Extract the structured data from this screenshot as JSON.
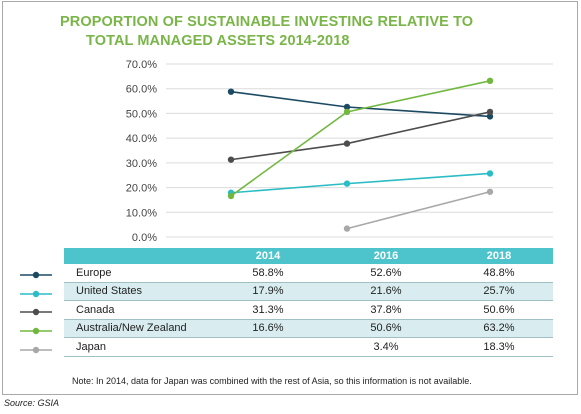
{
  "chart_data": {
    "type": "line",
    "title_line1": "PROPORTION OF SUSTAINABLE INVESTING RELATIVE TO",
    "title_line2": "TOTAL MANAGED ASSETS 2014-2018",
    "categories": [
      "2014",
      "2016",
      "2018"
    ],
    "ylim": [
      0,
      70
    ],
    "yticks": [
      "0.0%",
      "10.0%",
      "20.0%",
      "30.0%",
      "40.0%",
      "50.0%",
      "60.0%",
      "70.0%"
    ],
    "grid": true,
    "series": [
      {
        "name": "Europe",
        "color": "#1c4a63",
        "values": [
          58.8,
          52.6,
          48.8
        ],
        "labels": [
          "58.8%",
          "52.6%",
          "48.8%"
        ]
      },
      {
        "name": "United States",
        "color": "#2bbcc5",
        "values": [
          17.9,
          21.6,
          25.7
        ],
        "labels": [
          "17.9%",
          "21.6%",
          "25.7%"
        ]
      },
      {
        "name": "Canada",
        "color": "#4d4d4d",
        "values": [
          31.3,
          37.8,
          50.6
        ],
        "labels": [
          "31.3%",
          "37.8%",
          "50.6%"
        ]
      },
      {
        "name": "Australia/New Zealand",
        "color": "#72b83f",
        "values": [
          16.6,
          50.6,
          63.2
        ],
        "labels": [
          "16.6%",
          "50.6%",
          "63.2%"
        ]
      },
      {
        "name": "Japan",
        "color": "#a8a8a8",
        "values": [
          null,
          3.4,
          18.3
        ],
        "labels": [
          "",
          "3.4%",
          "18.3%"
        ]
      }
    ],
    "note": "Note: In 2014, data for Japan was combined with the rest of Asia, so this information is not available.",
    "source": "Source: GSIA"
  }
}
